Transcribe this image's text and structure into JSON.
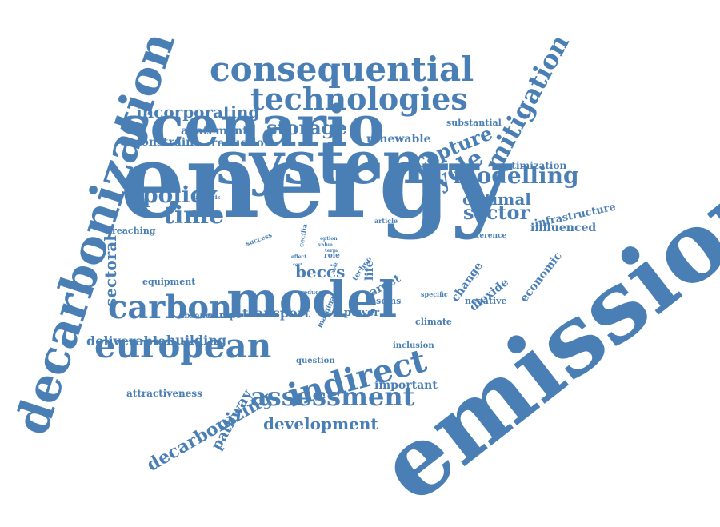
{
  "color": "#4a7fb5",
  "words": {
    "emission": "emission",
    "energy": "energy",
    "system": "system",
    "scenario": "scenario",
    "decarbonization": "decarbonization",
    "model": "model",
    "european": "european",
    "technologies": "technologies",
    "consequential": "consequential",
    "indirect": "indirect",
    "carbon": "carbon",
    "assessment": "assessment",
    "mitigation": "mitigation",
    "modelling": "modelling",
    "time": "time",
    "policy": "policy",
    "cycle": "cycle",
    "storage": "storage",
    "capture": "capture",
    "sector": "sector",
    "optimal": "optimal",
    "incorporating": "incorporating",
    "decarbonizing": "decarbonizing",
    "development": "development",
    "sectoral": "sectoral",
    "pathway": "pathway",
    "beccs": "beccs",
    "transport": "transport",
    "building": "building",
    "deliverable": "deliverable",
    "important": "important",
    "abatement": "abatement",
    "constraint": "constraint",
    "reduction": "reduction",
    "renewable": "renewable",
    "infrastructure": "infrastructure",
    "influenced": "influenced",
    "optimization": "optimization",
    "substantial": "substantial",
    "economic": "economic",
    "change": "change",
    "dioxide": "dioxide",
    "negative": "negative",
    "target": "target",
    "life": "life",
    "esoms": "esoms",
    "power": "power",
    "climate": "climate",
    "reaching": "reaching",
    "equipment": "equipment",
    "attractiveness": "attractiveness",
    "question": "question",
    "inclusion": "inclusion",
    "europe": "europe",
    "absence": "absence",
    "reference": "reference",
    "article": "article",
    "specific": "specific",
    "techno": "techno",
    "marginal": "marginal",
    "reduce": "reduce",
    "cecilia": "cecilia",
    "success": "success",
    "analysis": "analysis",
    "role": "role",
    "effect": "effect",
    "option": "option",
    "value": "value",
    "term": "term",
    "cost": "cost",
    "input": "input",
    "use": "use",
    "dot": "•"
  }
}
